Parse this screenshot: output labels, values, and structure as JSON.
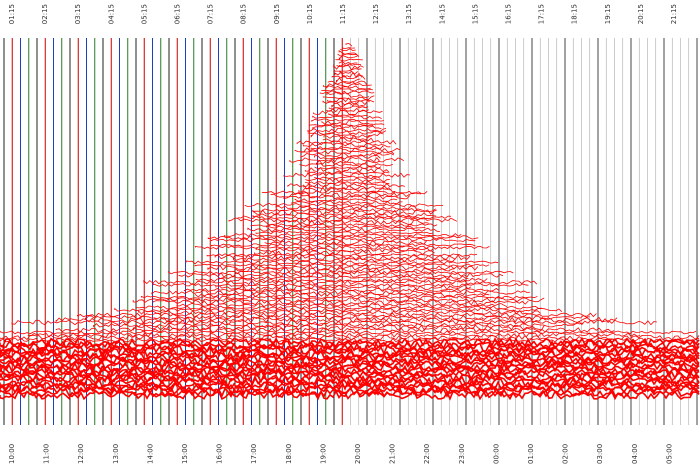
{
  "top_labels": [
    "01:15",
    "02:15",
    "03:15",
    "04:15",
    "05:15",
    "06:15",
    "07:15",
    "08:15",
    "09:15",
    "10:15",
    "11:15",
    "12:15",
    "13:15",
    "14:15",
    "15:15",
    "16:15",
    "17:15",
    "18:15",
    "19:15",
    "20:15",
    "21:15"
  ],
  "bottom_labels": [
    "10:00",
    "11:00",
    "12:00",
    "13:00",
    "14:00",
    "15:00",
    "16:00",
    "17:00",
    "18:00",
    "19:00",
    "20:00",
    "21:00",
    "22:00",
    "23:00",
    "00:00",
    "01:00",
    "02:00",
    "03:00",
    "04:00",
    "05:00"
  ]
}
